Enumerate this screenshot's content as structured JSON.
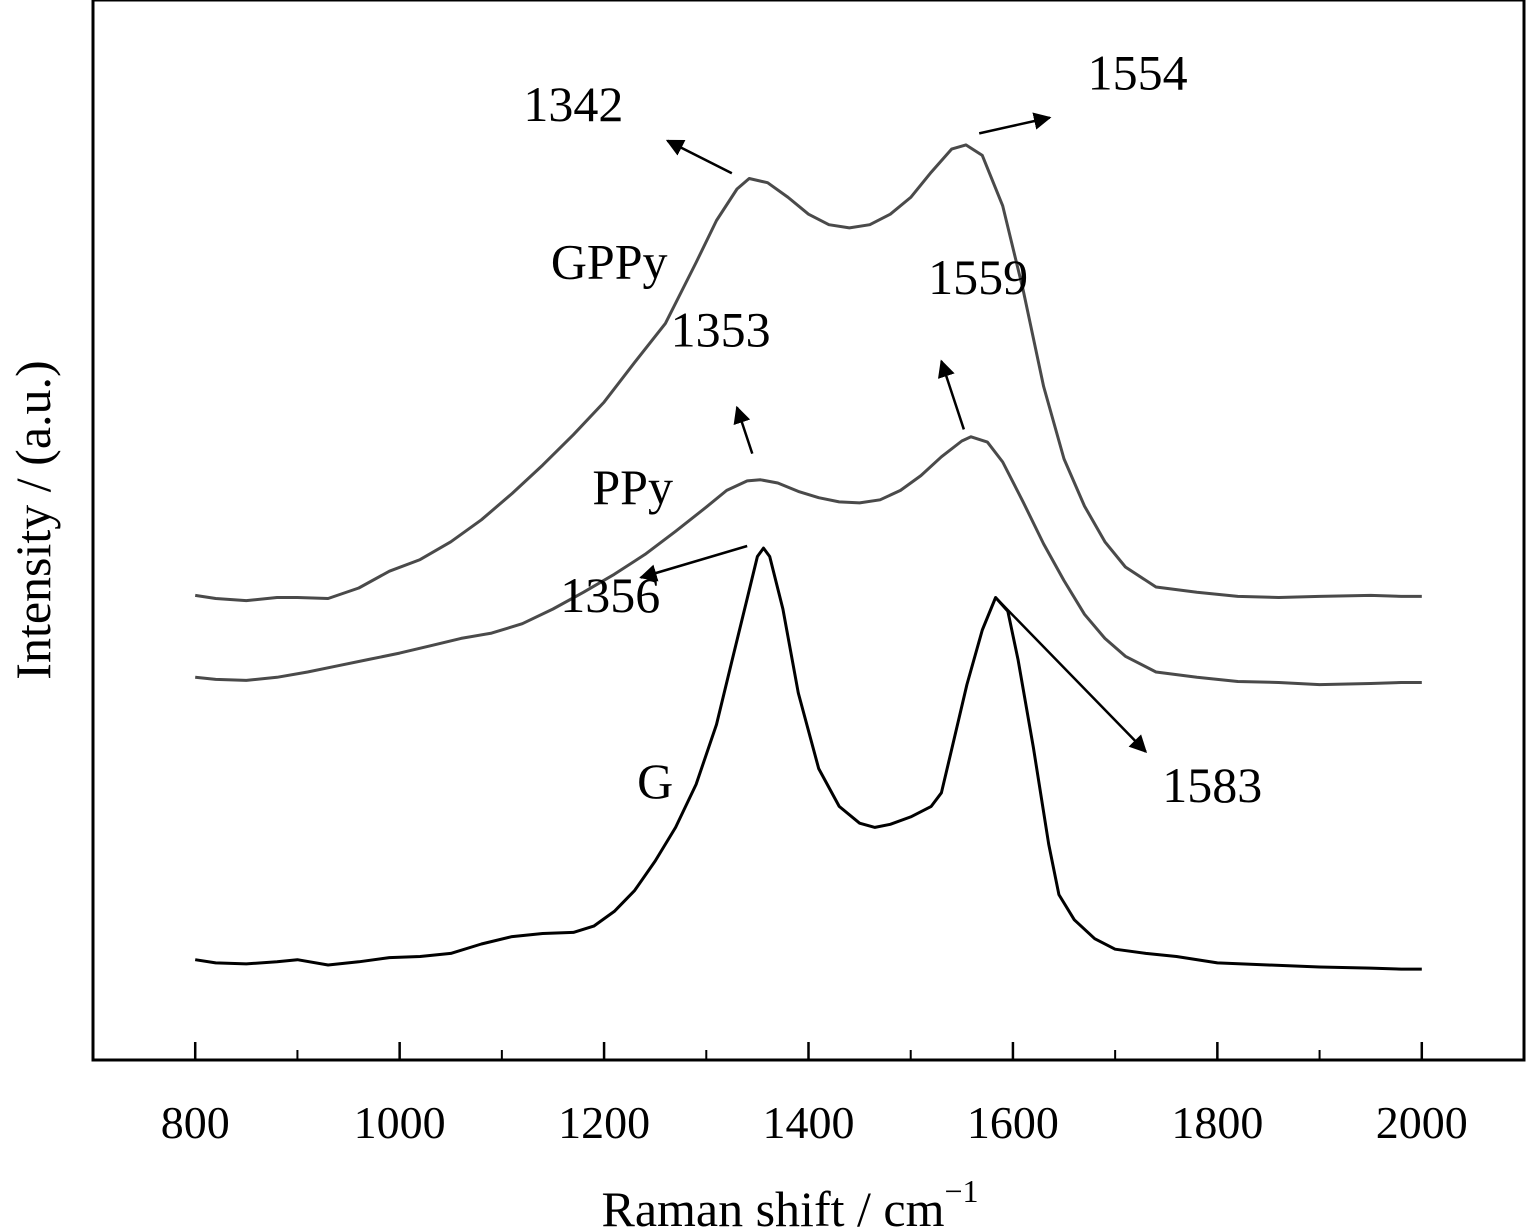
{
  "chart_data": {
    "type": "line",
    "title": "",
    "xlabel": "Raman shift / cm",
    "xlabel_superscript": "−1",
    "ylabel": "Intensity / (a.u.)",
    "xlim": [
      700,
      2100
    ],
    "ylim": [
      0,
      1
    ],
    "xticks": [
      800,
      1000,
      1200,
      1400,
      1600,
      1800,
      2000
    ],
    "minor_xticks": [
      900,
      1100,
      1300,
      1500,
      1700,
      1900
    ],
    "y_ticks": "none",
    "grid": false,
    "legend": "none",
    "series": [
      {
        "name": "GPPy",
        "color": "#4a4a4a",
        "points": [
          [
            800,
            0.433
          ],
          [
            820,
            0.43
          ],
          [
            850,
            0.428
          ],
          [
            880,
            0.431
          ],
          [
            900,
            0.431
          ],
          [
            930,
            0.43
          ],
          [
            960,
            0.44
          ],
          [
            990,
            0.456
          ],
          [
            1020,
            0.467
          ],
          [
            1050,
            0.484
          ],
          [
            1080,
            0.505
          ],
          [
            1110,
            0.53
          ],
          [
            1140,
            0.557
          ],
          [
            1170,
            0.586
          ],
          [
            1200,
            0.617
          ],
          [
            1230,
            0.655
          ],
          [
            1260,
            0.692
          ],
          [
            1290,
            0.75
          ],
          [
            1310,
            0.79
          ],
          [
            1330,
            0.82
          ],
          [
            1342,
            0.83
          ],
          [
            1360,
            0.826
          ],
          [
            1380,
            0.812
          ],
          [
            1400,
            0.796
          ],
          [
            1420,
            0.786
          ],
          [
            1440,
            0.783
          ],
          [
            1460,
            0.786
          ],
          [
            1480,
            0.796
          ],
          [
            1500,
            0.812
          ],
          [
            1520,
            0.836
          ],
          [
            1540,
            0.858
          ],
          [
            1554,
            0.862
          ],
          [
            1570,
            0.852
          ],
          [
            1590,
            0.804
          ],
          [
            1610,
            0.724
          ],
          [
            1630,
            0.632
          ],
          [
            1650,
            0.563
          ],
          [
            1670,
            0.518
          ],
          [
            1690,
            0.484
          ],
          [
            1710,
            0.46
          ],
          [
            1740,
            0.441
          ],
          [
            1780,
            0.436
          ],
          [
            1820,
            0.432
          ],
          [
            1860,
            0.431
          ],
          [
            1900,
            0.432
          ],
          [
            1950,
            0.433
          ],
          [
            1980,
            0.432
          ],
          [
            2000,
            0.432
          ]
        ]
      },
      {
        "name": "PPy",
        "color": "#4a4a4a",
        "points": [
          [
            800,
            0.355
          ],
          [
            820,
            0.353
          ],
          [
            850,
            0.352
          ],
          [
            880,
            0.355
          ],
          [
            910,
            0.36
          ],
          [
            940,
            0.366
          ],
          [
            970,
            0.372
          ],
          [
            1000,
            0.378
          ],
          [
            1030,
            0.385
          ],
          [
            1060,
            0.392
          ],
          [
            1090,
            0.397
          ],
          [
            1120,
            0.406
          ],
          [
            1150,
            0.42
          ],
          [
            1180,
            0.436
          ],
          [
            1210,
            0.453
          ],
          [
            1240,
            0.472
          ],
          [
            1270,
            0.494
          ],
          [
            1300,
            0.517
          ],
          [
            1320,
            0.533
          ],
          [
            1340,
            0.542
          ],
          [
            1353,
            0.543
          ],
          [
            1370,
            0.54
          ],
          [
            1390,
            0.532
          ],
          [
            1410,
            0.526
          ],
          [
            1430,
            0.522
          ],
          [
            1450,
            0.521
          ],
          [
            1470,
            0.524
          ],
          [
            1490,
            0.533
          ],
          [
            1510,
            0.547
          ],
          [
            1530,
            0.565
          ],
          [
            1550,
            0.58
          ],
          [
            1559,
            0.584
          ],
          [
            1575,
            0.579
          ],
          [
            1590,
            0.56
          ],
          [
            1610,
            0.522
          ],
          [
            1630,
            0.482
          ],
          [
            1650,
            0.447
          ],
          [
            1670,
            0.415
          ],
          [
            1690,
            0.392
          ],
          [
            1710,
            0.375
          ],
          [
            1740,
            0.36
          ],
          [
            1780,
            0.355
          ],
          [
            1820,
            0.351
          ],
          [
            1860,
            0.35
          ],
          [
            1900,
            0.348
          ],
          [
            1950,
            0.349
          ],
          [
            1980,
            0.35
          ],
          [
            2000,
            0.35
          ]
        ]
      },
      {
        "name": "G",
        "color": "#000000",
        "points": [
          [
            800,
            0.086
          ],
          [
            820,
            0.083
          ],
          [
            850,
            0.082
          ],
          [
            880,
            0.084
          ],
          [
            900,
            0.086
          ],
          [
            930,
            0.081
          ],
          [
            960,
            0.084
          ],
          [
            990,
            0.088
          ],
          [
            1020,
            0.089
          ],
          [
            1050,
            0.092
          ],
          [
            1080,
            0.101
          ],
          [
            1110,
            0.108
          ],
          [
            1140,
            0.111
          ],
          [
            1170,
            0.112
          ],
          [
            1190,
            0.118
          ],
          [
            1210,
            0.132
          ],
          [
            1230,
            0.152
          ],
          [
            1250,
            0.18
          ],
          [
            1270,
            0.212
          ],
          [
            1290,
            0.253
          ],
          [
            1310,
            0.31
          ],
          [
            1325,
            0.37
          ],
          [
            1340,
            0.43
          ],
          [
            1350,
            0.47
          ],
          [
            1356,
            0.478
          ],
          [
            1362,
            0.47
          ],
          [
            1375,
            0.42
          ],
          [
            1390,
            0.34
          ],
          [
            1410,
            0.268
          ],
          [
            1430,
            0.232
          ],
          [
            1450,
            0.216
          ],
          [
            1465,
            0.212
          ],
          [
            1480,
            0.215
          ],
          [
            1500,
            0.222
          ],
          [
            1520,
            0.232
          ],
          [
            1530,
            0.245
          ],
          [
            1540,
            0.286
          ],
          [
            1555,
            0.348
          ],
          [
            1570,
            0.4
          ],
          [
            1583,
            0.431
          ],
          [
            1595,
            0.418
          ],
          [
            1605,
            0.372
          ],
          [
            1620,
            0.288
          ],
          [
            1635,
            0.196
          ],
          [
            1645,
            0.148
          ],
          [
            1660,
            0.124
          ],
          [
            1680,
            0.106
          ],
          [
            1700,
            0.096
          ],
          [
            1730,
            0.092
          ],
          [
            1760,
            0.089
          ],
          [
            1800,
            0.083
          ],
          [
            1850,
            0.081
          ],
          [
            1900,
            0.079
          ],
          [
            1950,
            0.078
          ],
          [
            1980,
            0.077
          ],
          [
            2000,
            0.077
          ]
        ]
      }
    ],
    "series_labels": [
      {
        "series": "GPPy",
        "text": "GPPy",
        "x": 1205,
        "y": 0.735
      },
      {
        "series": "PPy",
        "text": "PPy",
        "x": 1228,
        "y": 0.52
      },
      {
        "series": "G",
        "text": "G",
        "x": 1250,
        "y": 0.24
      }
    ],
    "annotations": [
      {
        "text": "1342",
        "x": 1170,
        "y": 0.885,
        "arrow_from": [
          1325,
          0.835
        ],
        "arrow_to": [
          1262,
          0.866
        ]
      },
      {
        "text": "1554",
        "x": 1722,
        "y": 0.915,
        "arrow_from": [
          1567,
          0.873
        ],
        "arrow_to": [
          1636,
          0.888
        ]
      },
      {
        "text": "1353",
        "x": 1314,
        "y": 0.67,
        "arrow_from": [
          1345,
          0.568
        ],
        "arrow_to": [
          1330,
          0.612
        ]
      },
      {
        "text": "1559",
        "x": 1566,
        "y": 0.72,
        "arrow_from": [
          1552,
          0.591
        ],
        "arrow_to": [
          1530,
          0.656
        ]
      },
      {
        "text": "1356",
        "x": 1206,
        "y": 0.417,
        "arrow_from": [
          1340,
          0.48
        ],
        "arrow_to": [
          1236,
          0.45
        ]
      },
      {
        "text": "1583",
        "x": 1795,
        "y": 0.236,
        "arrow_from": [
          1585,
          0.429
        ],
        "arrow_to": [
          1730,
          0.284
        ]
      }
    ]
  }
}
